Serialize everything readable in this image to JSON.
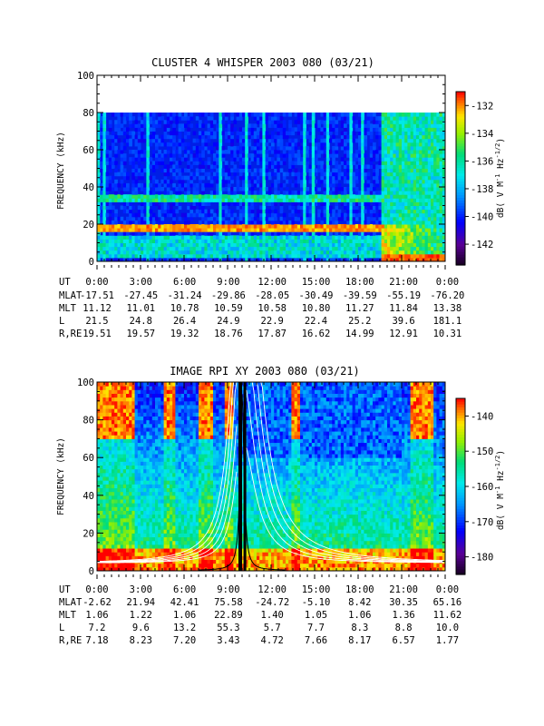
{
  "chart_data": [
    {
      "type": "heatmap",
      "title": "CLUSTER 4 WHISPER 2003 080 (03/21)",
      "ylabel": "FREQUENCY (kHz)",
      "ylim": [
        0,
        100
      ],
      "y_ticks": [
        0,
        20,
        40,
        60,
        80,
        100
      ],
      "data_frequency_range": [
        0,
        80
      ],
      "x_ticks": [
        "0:00",
        "3:00",
        "6:00",
        "9:00",
        "12:00",
        "15:00",
        "18:00",
        "21:00",
        "0:00"
      ],
      "colorbar": {
        "label_parts": [
          "dB( V M",
          "-1",
          " Hz",
          "-1/2",
          ")"
        ],
        "range": [
          -143.5,
          -131
        ],
        "ticks": [
          -132,
          -134,
          -136,
          -138,
          -140,
          -142
        ]
      },
      "ephemeris": [
        {
          "name": "UT",
          "values": [
            "0:00",
            "3:00",
            "6:00",
            "9:00",
            "12:00",
            "15:00",
            "18:00",
            "21:00",
            "0:00"
          ]
        },
        {
          "name": "MLAT",
          "values": [
            "-17.51",
            "-27.45",
            "-31.24",
            "-29.86",
            "-28.05",
            "-30.49",
            "-39.59",
            "-55.19",
            "-76.20"
          ]
        },
        {
          "name": "MLT",
          "values": [
            "11.12",
            "11.01",
            "10.78",
            "10.59",
            "10.58",
            "10.80",
            "11.27",
            "11.84",
            "13.38"
          ]
        },
        {
          "name": "L",
          "values": [
            "21.5",
            "24.8",
            "26.4",
            "24.9",
            "22.9",
            "22.4",
            "25.2",
            "39.6",
            "181.1"
          ]
        },
        {
          "name": "R,RE",
          "values": [
            "19.51",
            "19.57",
            "19.32",
            "18.76",
            "17.87",
            "16.62",
            "14.99",
            "12.91",
            "10.31"
          ]
        }
      ]
    },
    {
      "type": "heatmap",
      "title": "IMAGE RPI XY 2003 080 (03/21)",
      "ylabel": "FREQUENCY (kHz)",
      "ylim": [
        0,
        100
      ],
      "y_ticks": [
        0,
        20,
        40,
        60,
        80,
        100
      ],
      "x_ticks": [
        "0:00",
        "3:00",
        "6:00",
        "9:00",
        "12:00",
        "15:00",
        "18:00",
        "21:00",
        "0:00"
      ],
      "colorbar": {
        "label_parts": [
          "dB( V M",
          "-1",
          " Hz",
          "-1/2",
          ")"
        ],
        "range": [
          -185,
          -135
        ],
        "ticks": [
          -140,
          -150,
          -160,
          -170,
          -180
        ]
      },
      "overlay": "white cutoff curves and black plasma frequency trace near perigee at about 10:00 UT",
      "ephemeris": [
        {
          "name": "UT",
          "values": [
            "0:00",
            "3:00",
            "6:00",
            "9:00",
            "12:00",
            "15:00",
            "18:00",
            "21:00",
            "0:00"
          ]
        },
        {
          "name": "MLAT",
          "values": [
            "-2.62",
            "21.94",
            "42.41",
            "75.58",
            "-24.72",
            "-5.10",
            "8.42",
            "30.35",
            "65.16"
          ]
        },
        {
          "name": "MLT",
          "values": [
            "1.06",
            "1.22",
            "1.06",
            "22.89",
            "1.40",
            "1.05",
            "1.06",
            "1.36",
            "11.62"
          ]
        },
        {
          "name": "L",
          "values": [
            "7.2",
            "9.6",
            "13.2",
            "55.3",
            "5.7",
            "7.7",
            "8.3",
            "8.8",
            "10.0"
          ]
        },
        {
          "name": "R,RE",
          "values": [
            "7.18",
            "8.23",
            "7.20",
            "3.43",
            "4.72",
            "7.66",
            "8.17",
            "6.57",
            "1.77"
          ]
        }
      ]
    }
  ]
}
